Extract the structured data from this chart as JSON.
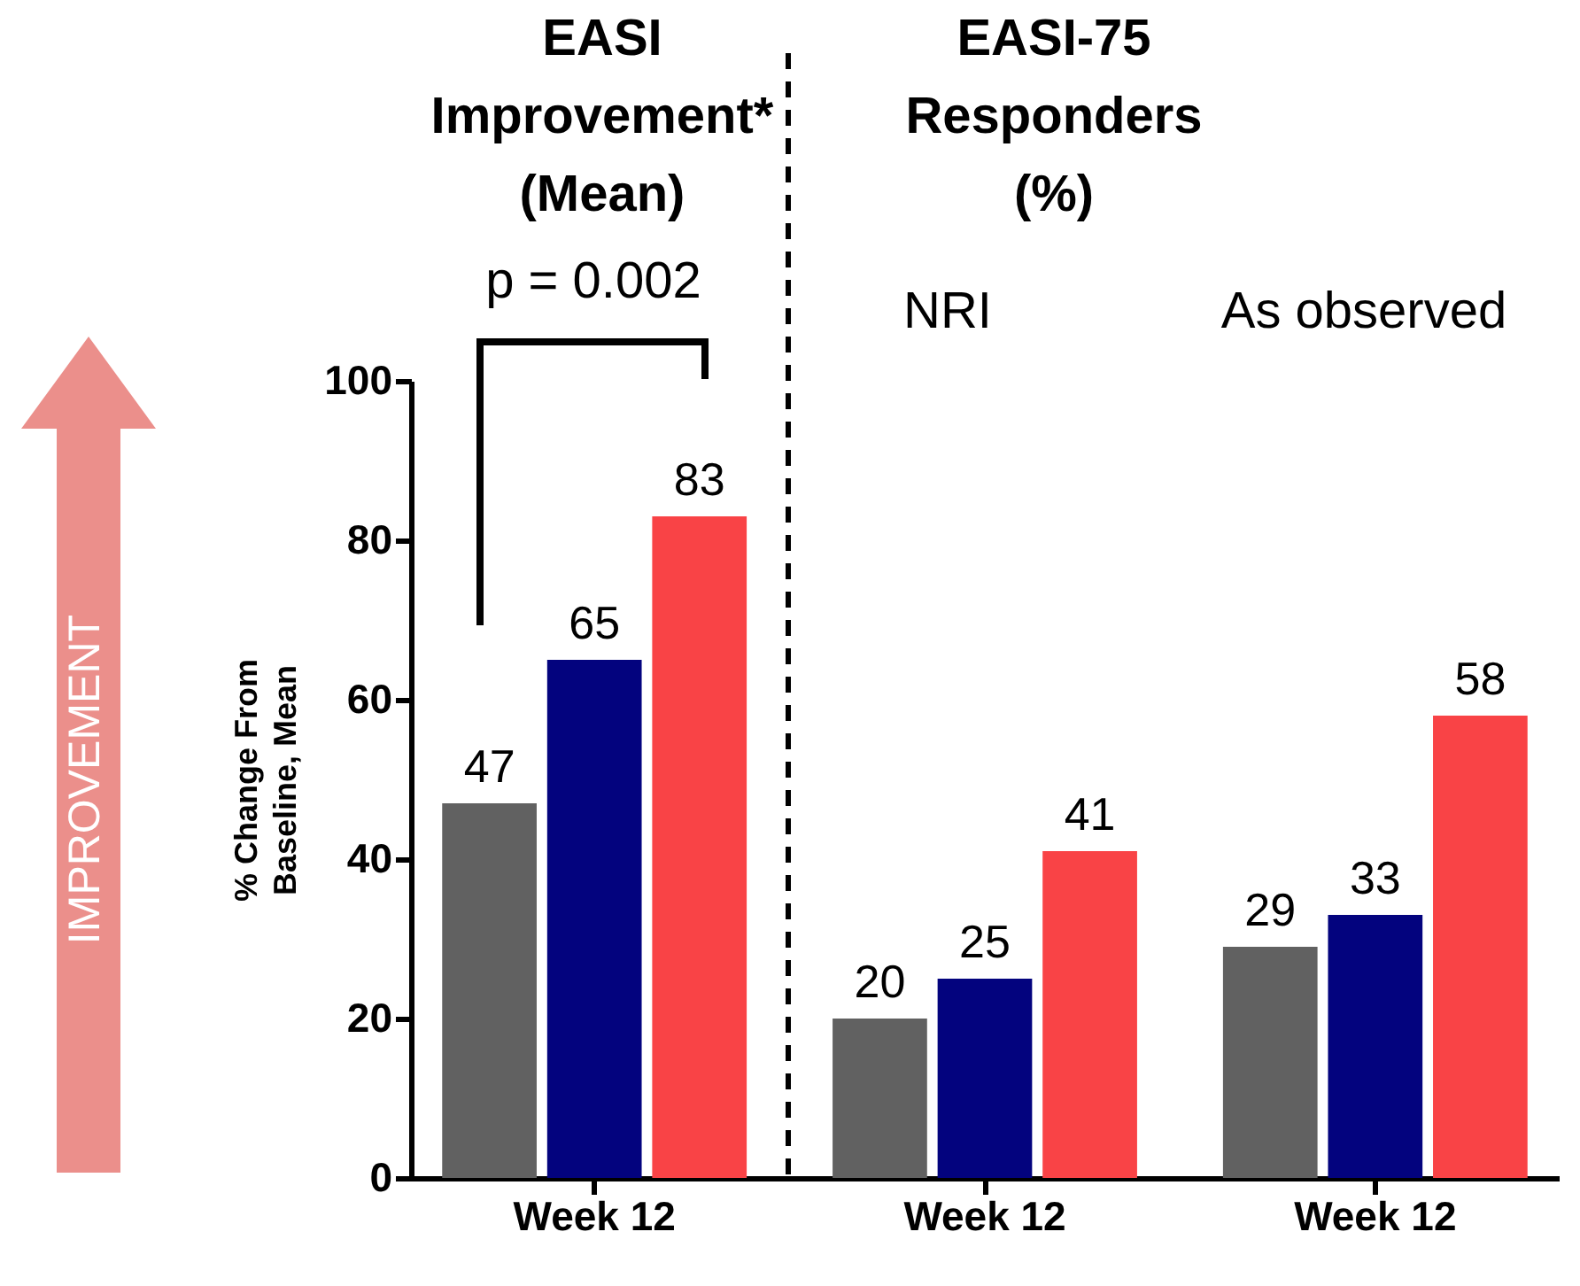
{
  "chart_data": {
    "type": "bar",
    "categories": [
      "Week 12",
      "Week 12",
      "Week 12"
    ],
    "series": [
      {
        "color": "#616161",
        "values": [
          47,
          20,
          29
        ]
      },
      {
        "color": "#03037e",
        "values": [
          65,
          25,
          33
        ]
      },
      {
        "color": "#f94346",
        "values": [
          83,
          41,
          58
        ]
      }
    ],
    "ylabel": "% Change From Baseline, Mean",
    "ylim": [
      0,
      100
    ],
    "yticks": [
      0,
      20,
      40,
      60,
      80,
      100
    ],
    "data_labels": true,
    "grid": false,
    "legend": false,
    "annotations": [
      "EASI Improvement* (Mean)",
      "EASI-75 Responders (%)",
      "p = 0.002",
      "NRI",
      "As observed",
      "IMPROVEMENT"
    ]
  }
}
